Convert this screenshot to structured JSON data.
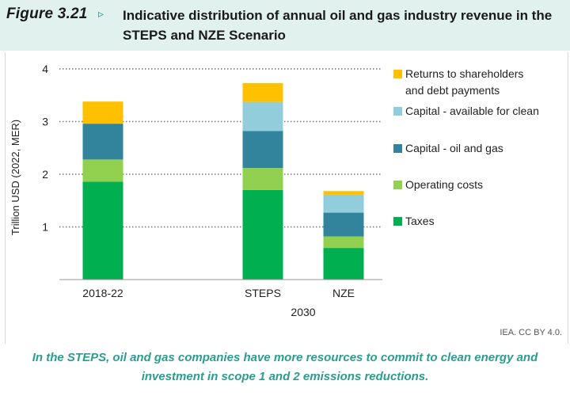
{
  "header": {
    "figure_number": "Figure 3.21",
    "arrow": "▹",
    "title": "Indicative distribution of annual oil and gas industry revenue in the STEPS and NZE Scenario"
  },
  "chart_data": {
    "type": "bar",
    "stacked": true,
    "categories": [
      "2018-22",
      "STEPS",
      "NZE"
    ],
    "group_label": "2030",
    "ylabel": "Trillion USD (2022, MER)",
    "ylim": [
      0,
      4
    ],
    "yticks": [
      1,
      2,
      3,
      4
    ],
    "grid": "dotted",
    "legend_position": "right",
    "series": [
      {
        "name": "Taxes",
        "color": "#00b050",
        "values": [
          1.86,
          1.7,
          0.6
        ]
      },
      {
        "name": "Operating costs",
        "color": "#92d050",
        "values": [
          0.42,
          0.42,
          0.22
        ]
      },
      {
        "name": "Capital - oil and gas",
        "color": "#31849b",
        "values": [
          0.68,
          0.7,
          0.45
        ]
      },
      {
        "name": "Capital - available for clean",
        "color": "#92cddc",
        "values": [
          0.0,
          0.55,
          0.34
        ]
      },
      {
        "name": "Returns to shareholders and debt payments",
        "color": "#ffc000",
        "values": [
          0.42,
          0.36,
          0.07
        ]
      }
    ],
    "legend_order": [
      4,
      3,
      2,
      1,
      0
    ]
  },
  "source": "IEA. CC BY 4.0.",
  "caption": "In the STEPS, oil and gas companies have more resources to commit to clean energy and investment in scope 1 and 2 emissions reductions."
}
